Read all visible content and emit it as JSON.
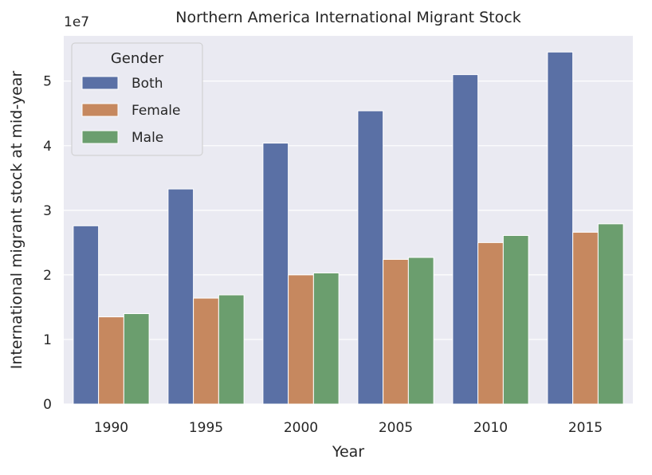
{
  "chart_data": {
    "type": "bar",
    "title": "Northern America International Migrant Stock",
    "xlabel": "Year",
    "ylabel": "International migrant stock at mid-year",
    "y_offset_label": "1e7",
    "categories": [
      "1990",
      "1995",
      "2000",
      "2005",
      "2010",
      "2015"
    ],
    "series": [
      {
        "name": "Both",
        "color": "#5a70a5",
        "values": [
          27600000,
          33300000,
          40400000,
          45400000,
          51000000,
          54500000
        ]
      },
      {
        "name": "Female",
        "color": "#c6885f",
        "values": [
          13500000,
          16400000,
          20000000,
          22400000,
          25000000,
          26600000
        ]
      },
      {
        "name": "Male",
        "color": "#6b9e6e",
        "values": [
          14000000,
          16900000,
          20300000,
          22700000,
          26100000,
          27900000
        ]
      }
    ],
    "ylim": [
      0,
      57000000
    ],
    "yticks": [
      0,
      10000000,
      20000000,
      30000000,
      40000000,
      50000000
    ],
    "ytick_labels": [
      "0",
      "1",
      "2",
      "3",
      "4",
      "5"
    ],
    "grid": true,
    "legend": {
      "title": "Gender",
      "placement": "top-left"
    }
  }
}
